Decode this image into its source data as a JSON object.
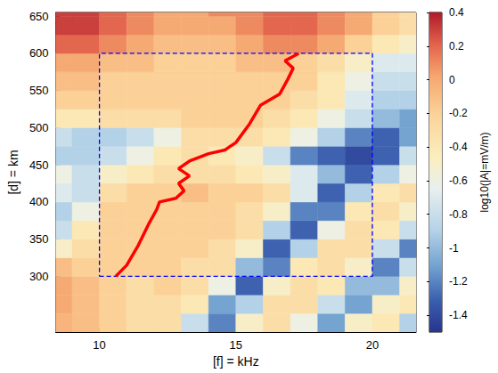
{
  "chart_data": {
    "type": "heatmap",
    "xlabel": "[f] = kHz",
    "ylabel": "[d] = km",
    "xlim": [
      8.4,
      21.6
    ],
    "xticks": [
      10,
      15,
      20
    ],
    "ylim": [
      225,
      655
    ],
    "yticks": [
      300,
      350,
      400,
      450,
      500,
      550,
      600,
      650
    ],
    "cells": {
      "x": [
        8.5,
        9.5,
        10.5,
        11.5,
        12.5,
        13.5,
        14.5,
        15.5,
        16.5,
        17.5,
        18.5,
        19.5,
        20.5,
        21.5
      ],
      "y": [
        237.5,
        262.5,
        287.5,
        312.5,
        337.5,
        362.5,
        387.5,
        412.5,
        437.5,
        462.5,
        487.5,
        512.5,
        537.5,
        562.5,
        587.5,
        612.5,
        637.5,
        662.5
      ],
      "values": [
        [
          -0.05,
          -0.1,
          -0.2,
          -0.3,
          -0.3,
          -0.8,
          -1.2,
          -0.5,
          -0.3,
          -0.6,
          -1.1,
          -0.5,
          -0.4,
          -0.9
        ],
        [
          0.0,
          -0.1,
          -0.2,
          -0.3,
          -0.3,
          -0.4,
          -1.1,
          -0.9,
          -0.3,
          -0.3,
          -0.8,
          -1.1,
          -0.5,
          -0.4
        ],
        [
          0.0,
          -0.1,
          -0.2,
          -0.3,
          -0.2,
          -0.3,
          -0.6,
          -1.3,
          -0.5,
          -0.3,
          -0.4,
          -1.0,
          -1.0,
          -0.5
        ],
        [
          -0.1,
          -0.2,
          -0.2,
          -0.2,
          -0.2,
          -0.3,
          -0.3,
          -1.0,
          -1.2,
          -0.4,
          -0.3,
          -0.5,
          -1.2,
          -0.8
        ],
        [
          -0.5,
          -0.3,
          -0.2,
          -0.2,
          -0.2,
          -0.2,
          -0.3,
          -0.5,
          -1.3,
          -0.9,
          -0.3,
          -0.3,
          -0.8,
          -1.2
        ],
        [
          -0.8,
          -0.4,
          -0.2,
          -0.2,
          -0.2,
          -0.2,
          -0.2,
          -0.3,
          -0.9,
          -1.3,
          -0.6,
          -0.3,
          -0.4,
          -0.8
        ],
        [
          -0.9,
          -0.6,
          -0.2,
          -0.2,
          -0.2,
          -0.2,
          -0.2,
          -0.3,
          -0.5,
          -1.2,
          -1.2,
          -0.4,
          -0.3,
          -0.5
        ],
        [
          -0.7,
          -0.8,
          -0.3,
          -0.2,
          -0.2,
          -0.1,
          -0.2,
          -0.2,
          -0.3,
          -0.7,
          -1.3,
          -0.9,
          -0.4,
          -0.3
        ],
        [
          -0.6,
          -0.8,
          -0.5,
          -0.4,
          -0.3,
          -0.3,
          -0.3,
          -0.4,
          -0.5,
          -0.7,
          -1.0,
          -1.3,
          -0.9,
          -0.6
        ],
        [
          -0.9,
          -0.9,
          -0.8,
          -0.6,
          -0.4,
          -0.3,
          -0.4,
          -0.5,
          -0.8,
          -1.2,
          -1.3,
          -1.4,
          -1.3,
          -0.8
        ],
        [
          -0.8,
          -0.9,
          -0.9,
          -0.8,
          -0.6,
          -0.3,
          -0.3,
          -0.3,
          -0.4,
          -0.6,
          -0.9,
          -1.2,
          -1.3,
          -1.1
        ],
        [
          -0.4,
          -0.4,
          -0.3,
          -0.3,
          -0.3,
          -0.2,
          -0.2,
          -0.2,
          -0.3,
          -0.4,
          -0.6,
          -0.8,
          -1.0,
          -1.1
        ],
        [
          -0.2,
          -0.2,
          -0.2,
          -0.2,
          -0.2,
          -0.2,
          -0.2,
          -0.2,
          -0.2,
          -0.3,
          -0.4,
          -0.7,
          -0.9,
          -0.9
        ],
        [
          -0.1,
          -0.1,
          -0.2,
          -0.2,
          -0.2,
          -0.2,
          -0.2,
          -0.2,
          -0.2,
          -0.2,
          -0.4,
          -0.6,
          -0.8,
          -0.8
        ],
        [
          0.0,
          0.0,
          -0.1,
          -0.1,
          -0.2,
          -0.2,
          -0.2,
          -0.1,
          -0.1,
          -0.2,
          -0.3,
          -0.5,
          -0.7,
          -0.7
        ],
        [
          0.2,
          0.2,
          0.1,
          0.0,
          -0.1,
          -0.1,
          -0.1,
          0.0,
          0.1,
          0.1,
          0.0,
          -0.2,
          -0.4,
          -0.5
        ],
        [
          0.3,
          0.3,
          0.2,
          0.1,
          0.0,
          0.0,
          0.0,
          0.1,
          0.2,
          0.2,
          0.1,
          0.0,
          -0.2,
          -0.3
        ],
        [
          0.3,
          0.3,
          0.2,
          0.1,
          0.0,
          0.0,
          0.1,
          0.1,
          0.2,
          0.2,
          0.1,
          0.0,
          -0.2,
          -0.3
        ]
      ]
    },
    "colorbar": {
      "label": "log10(|A|=mV/m)",
      "range": [
        -1.5,
        0.4
      ],
      "ticks": [
        -1.4,
        -1.2,
        -1,
        -0.8,
        -0.6,
        -0.4,
        -0.2,
        0,
        0.2,
        0.4
      ]
    },
    "series": [
      {
        "type": "line",
        "color": "#ff0000",
        "line_style": "solid",
        "x": [
          10.6,
          11,
          11.4,
          11.8,
          12.1,
          12.2,
          12.8,
          13.1,
          12.9,
          13.3,
          12.9,
          13.3,
          14,
          14.6,
          15,
          15.5,
          15.9,
          16.6,
          16.9,
          17.1,
          16.8,
          17.3
        ],
        "values": [
          300,
          315,
          340,
          370,
          390,
          400,
          405,
          415,
          425,
          435,
          445,
          455,
          465,
          470,
          480,
          505,
          530,
          545,
          565,
          580,
          590,
          600
        ]
      },
      {
        "type": "line",
        "color": "#0000ff",
        "line_style": "dashed",
        "x": [
          10,
          20,
          20,
          10,
          10
        ],
        "values": [
          300,
          300,
          600,
          600,
          300
        ]
      }
    ]
  }
}
